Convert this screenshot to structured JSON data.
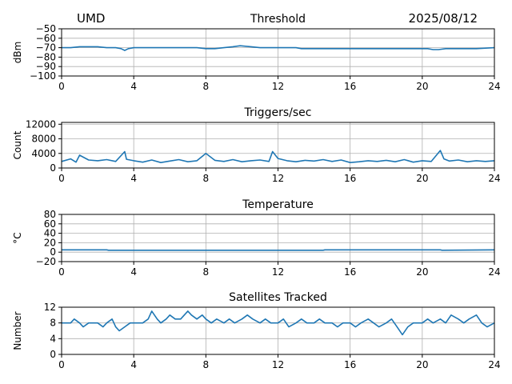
{
  "header": {
    "left": "UMD",
    "right": "2025/08/12"
  },
  "style": {
    "series_color": "#1f77b4",
    "grid_color": "#b0b0b0"
  },
  "chart_data": [
    {
      "type": "line",
      "title": "Threshold",
      "ylabel": "dBm",
      "xlim": [
        0,
        24
      ],
      "ylim": [
        -100,
        -50
      ],
      "x_ticks": [
        0,
        4,
        8,
        12,
        16,
        20,
        24
      ],
      "y_ticks": [
        -100,
        -90,
        -80,
        -70,
        -60,
        -50
      ],
      "grid": true,
      "series": [
        {
          "x": [
            0,
            0.5,
            1,
            1.5,
            2,
            2.5,
            3,
            3.3,
            3.5,
            3.7,
            4,
            4.5,
            5,
            5.5,
            6,
            6.5,
            7,
            7.5,
            8,
            8.5,
            9,
            9.5,
            9.9,
            10.5,
            11,
            11.5,
            12,
            12.5,
            13,
            13.3,
            13.6,
            14,
            14.5,
            15,
            16,
            17,
            18,
            19,
            19.5,
            20,
            20.3,
            20.6,
            20.9,
            21.3,
            22,
            23,
            24
          ],
          "y": [
            -70,
            -70,
            -69,
            -69,
            -69,
            -70,
            -70,
            -71,
            -73,
            -71,
            -70,
            -70,
            -70,
            -70,
            -70,
            -70,
            -70,
            -70,
            -71,
            -71,
            -70,
            -69,
            -68,
            -69,
            -70,
            -70,
            -70,
            -70,
            -70,
            -71,
            -71,
            -71,
            -71,
            -71,
            -71,
            -71,
            -71,
            -71,
            -71,
            -71,
            -71,
            -72,
            -72,
            -71,
            -71,
            -71,
            -70
          ]
        }
      ]
    },
    {
      "type": "line",
      "title": "Triggers/sec",
      "ylabel": "Count",
      "xlim": [
        0,
        24
      ],
      "ylim": [
        0,
        12500
      ],
      "x_ticks": [
        0,
        4,
        8,
        12,
        16,
        20,
        24
      ],
      "y_ticks": [
        0,
        4000,
        8000,
        12000
      ],
      "grid": true,
      "series": [
        {
          "x": [
            0,
            0.5,
            0.8,
            1,
            1.5,
            2,
            2.5,
            3,
            3.5,
            3.6,
            4,
            4.5,
            5,
            5.5,
            6,
            6.5,
            7,
            7.5,
            8,
            8.5,
            9,
            9.5,
            10,
            10.5,
            11,
            11.5,
            11.7,
            12,
            12.5,
            13,
            13.5,
            14,
            14.5,
            15,
            15.5,
            16,
            16.5,
            17,
            17.5,
            18,
            18.5,
            19,
            19.5,
            20,
            20.5,
            21,
            21.2,
            21.5,
            22,
            22.5,
            23,
            23.5,
            24
          ],
          "y": [
            1800,
            2500,
            1600,
            3500,
            2200,
            2000,
            2300,
            1800,
            4500,
            2400,
            2000,
            1600,
            2200,
            1500,
            1900,
            2300,
            1700,
            2000,
            4000,
            2100,
            1800,
            2300,
            1700,
            2000,
            2200,
            1800,
            4500,
            2600,
            2000,
            1700,
            2100,
            1900,
            2300,
            1800,
            2200,
            1500,
            1700,
            2000,
            1800,
            2100,
            1700,
            2300,
            1600,
            2000,
            1800,
            4800,
            2500,
            1900,
            2200,
            1700,
            2000,
            1800,
            2000
          ]
        }
      ]
    },
    {
      "type": "line",
      "title": "Temperature",
      "ylabel": "°C",
      "xlim": [
        0,
        24
      ],
      "ylim": [
        -20,
        80
      ],
      "x_ticks": [
        0,
        4,
        8,
        12,
        16,
        20,
        24
      ],
      "y_ticks": [
        -20,
        0,
        20,
        40,
        60,
        80
      ],
      "grid": true,
      "series": [
        {
          "x": [
            0,
            2.5,
            2.6,
            14.5,
            14.6,
            21,
            21.1,
            24
          ],
          "y": [
            5,
            5,
            4,
            4,
            5,
            5,
            4,
            5
          ]
        }
      ]
    },
    {
      "type": "line",
      "title": "Satellites Tracked",
      "ylabel": "Number",
      "xlim": [
        0,
        24
      ],
      "ylim": [
        0,
        12
      ],
      "x_ticks": [
        0,
        4,
        8,
        12,
        16,
        20,
        24
      ],
      "y_ticks": [
        0,
        4,
        8,
        12
      ],
      "grid": true,
      "series": [
        {
          "x": [
            0,
            0.5,
            0.7,
            1,
            1.2,
            1.5,
            2,
            2.3,
            2.5,
            2.8,
            3,
            3.2,
            3.5,
            3.8,
            4,
            4.5,
            4.8,
            5,
            5.3,
            5.5,
            5.8,
            6,
            6.3,
            6.6,
            7,
            7.2,
            7.5,
            7.8,
            8,
            8.3,
            8.6,
            9,
            9.3,
            9.6,
            10,
            10.3,
            10.6,
            11,
            11.3,
            11.6,
            12,
            12.3,
            12.6,
            13,
            13.3,
            13.6,
            14,
            14.3,
            14.6,
            15,
            15.3,
            15.6,
            16,
            16.3,
            16.6,
            17,
            17.3,
            17.6,
            18,
            18.3,
            18.6,
            18.9,
            19.2,
            19.5,
            20,
            20.3,
            20.6,
            21,
            21.3,
            21.6,
            22,
            22.3,
            22.6,
            23,
            23.3,
            23.6,
            24
          ],
          "y": [
            8,
            8,
            9,
            8,
            7,
            8,
            8,
            7,
            8,
            9,
            7,
            6,
            7,
            8,
            8,
            8,
            9,
            11,
            9,
            8,
            9,
            10,
            9,
            9,
            11,
            10,
            9,
            10,
            9,
            8,
            9,
            8,
            9,
            8,
            9,
            10,
            9,
            8,
            9,
            8,
            8,
            9,
            7,
            8,
            9,
            8,
            8,
            9,
            8,
            8,
            7,
            8,
            8,
            7,
            8,
            9,
            8,
            7,
            8,
            9,
            7,
            5,
            7,
            8,
            8,
            9,
            8,
            9,
            8,
            10,
            9,
            8,
            9,
            10,
            8,
            7,
            8
          ]
        }
      ]
    }
  ]
}
